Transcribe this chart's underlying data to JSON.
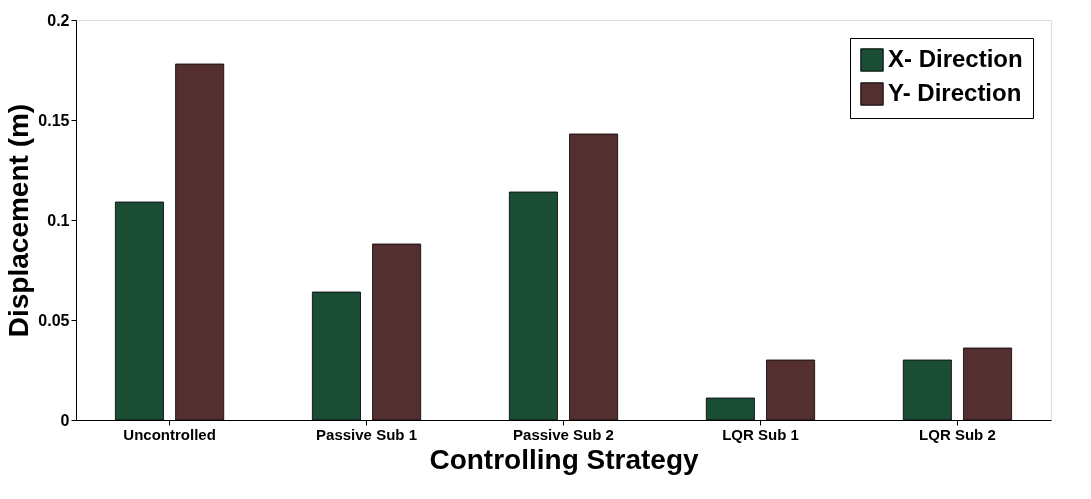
{
  "chart_data": {
    "type": "bar",
    "xlabel": "Controlling Strategy",
    "ylabel": "Displacement (m)",
    "categories": [
      "Uncontrolled",
      "Passive Sub 1",
      "Passive Sub 2",
      "LQR Sub 1",
      "LQR Sub 2"
    ],
    "series": [
      {
        "name": "X- Direction",
        "color": "#1b4d35",
        "values": [
          0.109,
          0.064,
          0.114,
          0.011,
          0.03
        ]
      },
      {
        "name": "Y- Direction",
        "color": "#532f2f",
        "values": [
          0.178,
          0.088,
          0.143,
          0.03,
          0.036
        ]
      }
    ],
    "ylim": [
      0,
      0.2
    ],
    "yticks": [
      0,
      0.05,
      0.1,
      0.15,
      0.2
    ],
    "grid": false,
    "legend": "top right"
  }
}
